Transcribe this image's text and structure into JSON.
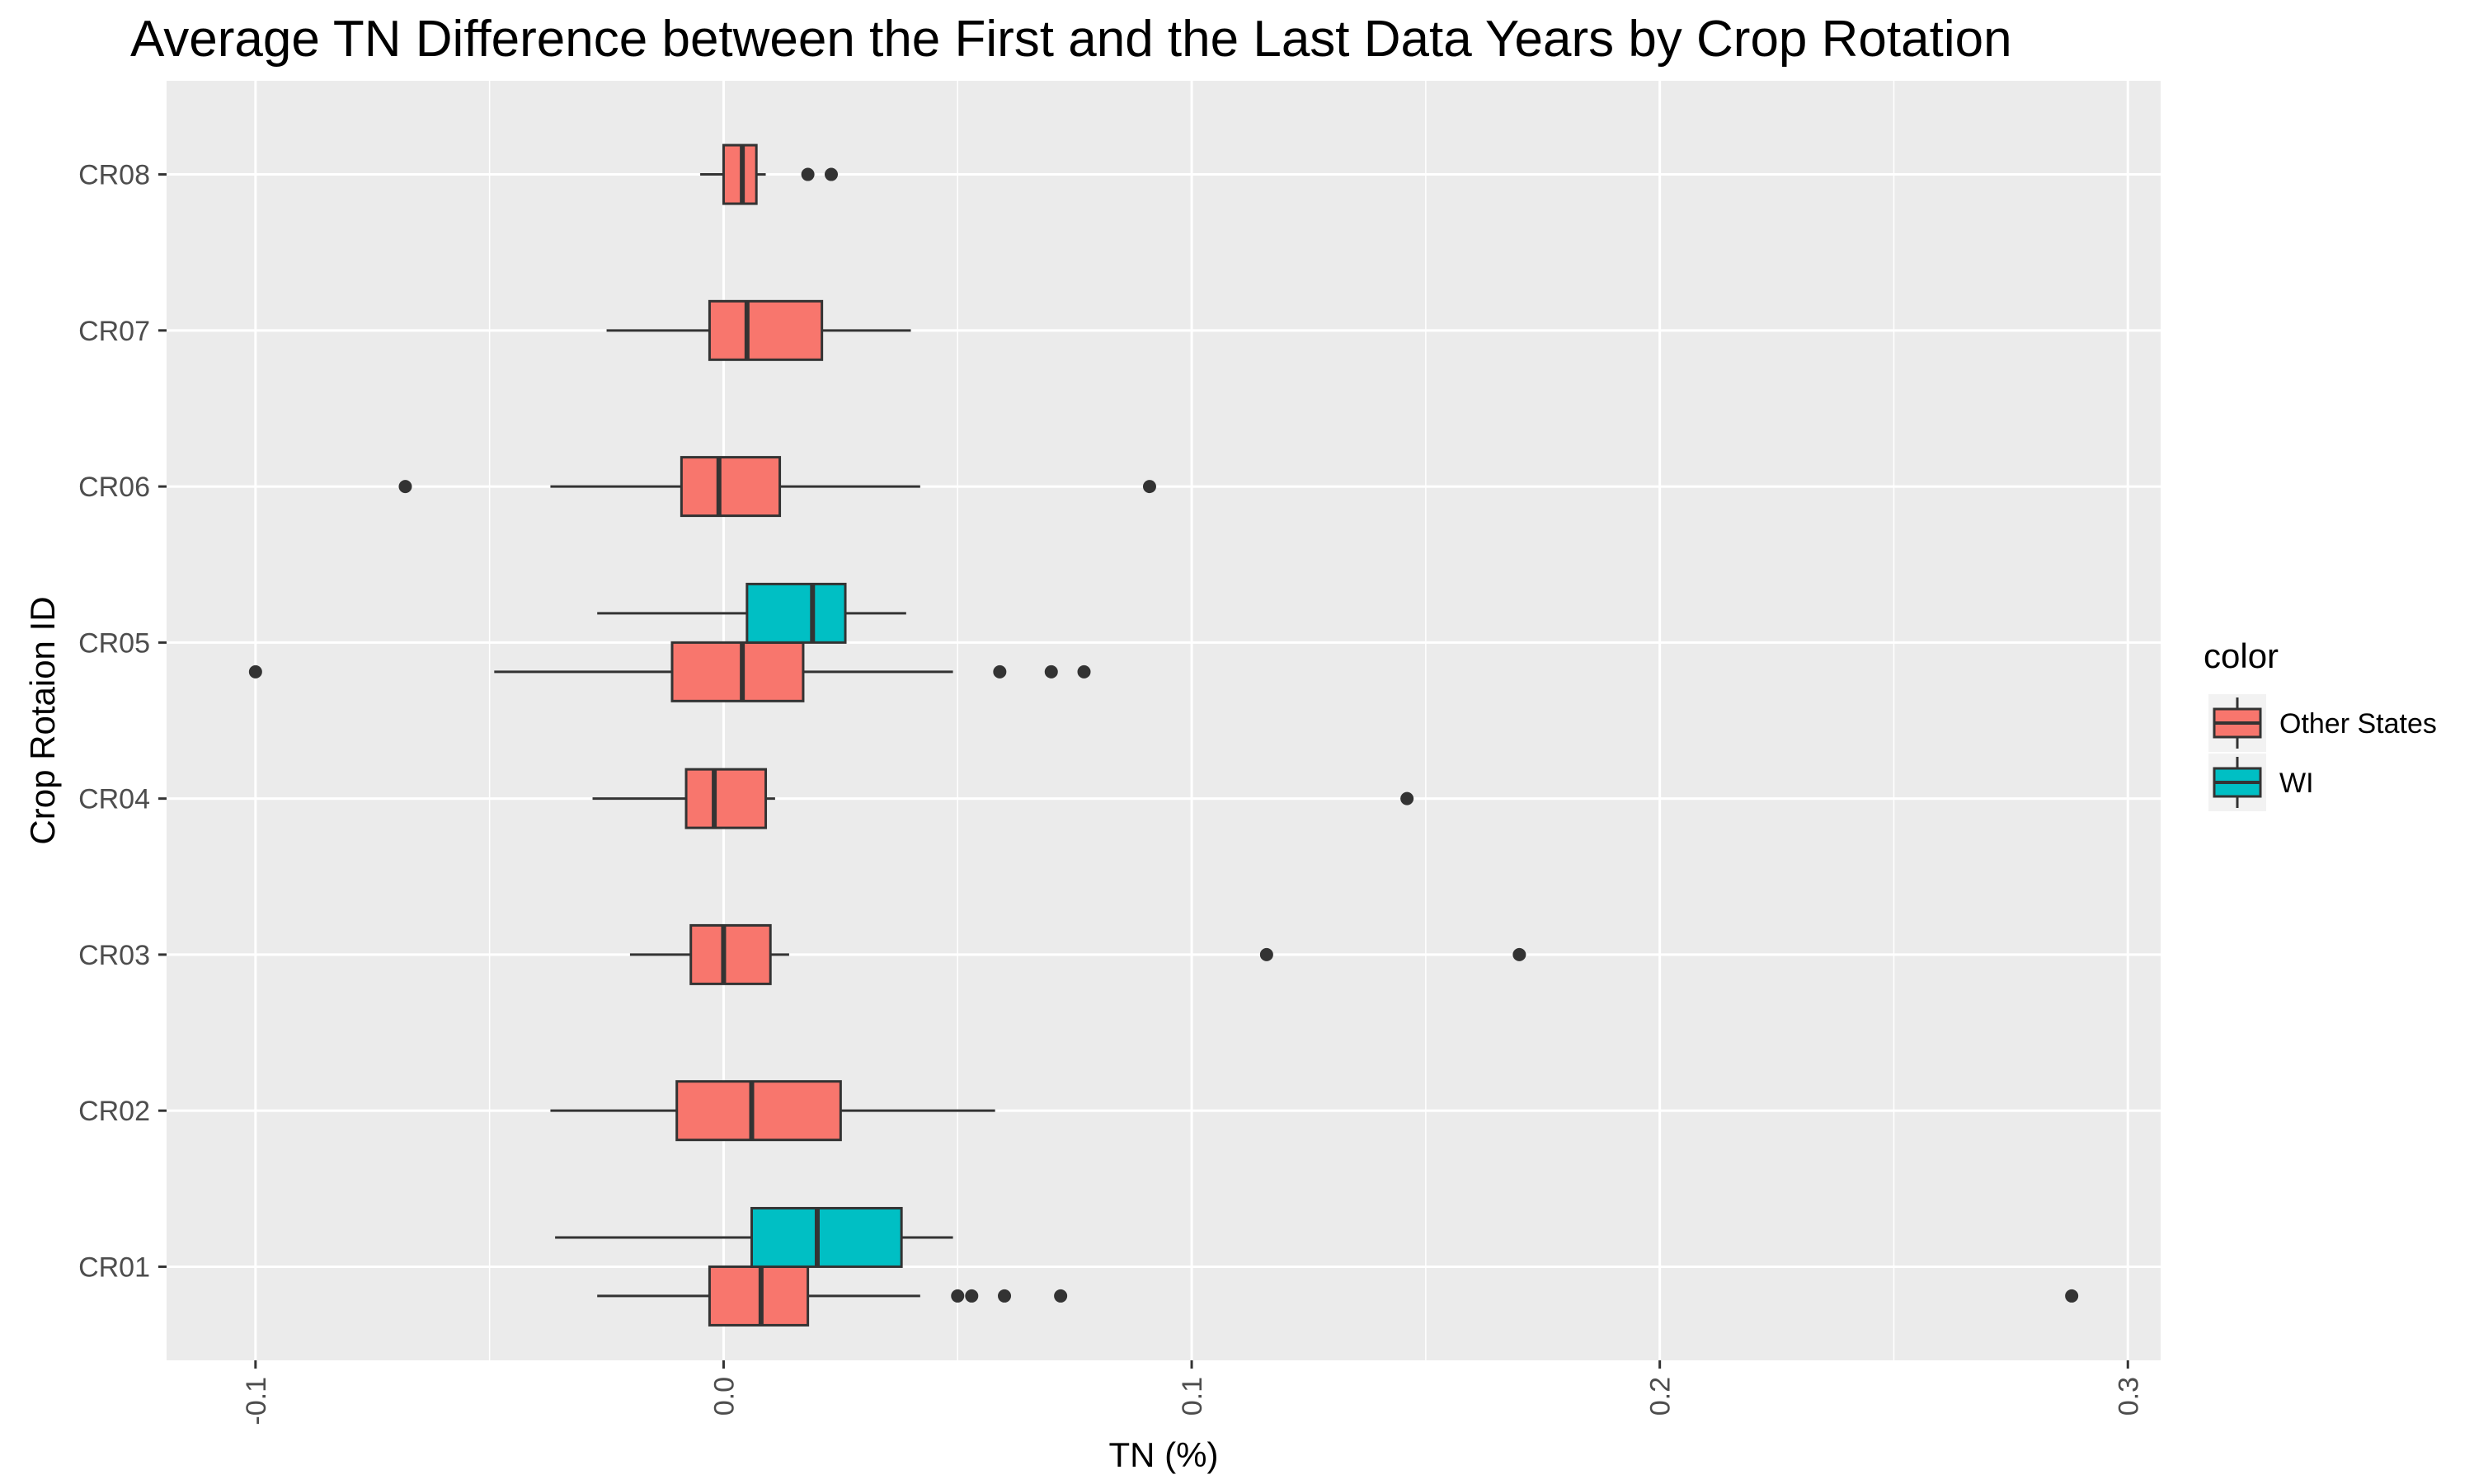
{
  "chart_data": {
    "type": "boxplot",
    "orientation": "horizontal",
    "title": "Average TN Difference between the First and the Last Data Years by Crop Rotation",
    "xlabel": "TN (%)",
    "ylabel": "Crop Rotaion ID",
    "xlim": [
      -0.119,
      0.307
    ],
    "x_ticks": [
      -0.1,
      0.0,
      0.1,
      0.2,
      0.3
    ],
    "x_tick_labels": [
      "-0.1",
      "0.0",
      "0.1",
      "0.2",
      "0.3"
    ],
    "categories": [
      "CR01",
      "CR02",
      "CR03",
      "CR04",
      "CR05",
      "CR06",
      "CR07",
      "CR08"
    ],
    "grid": true,
    "legend": {
      "title": "color",
      "position": "right",
      "entries": [
        {
          "label": "Other States",
          "color": "#F8766D"
        },
        {
          "label": "WI",
          "color": "#00BFC4"
        }
      ]
    },
    "series": [
      {
        "name": "Other States",
        "color": "#F8766D",
        "boxes": [
          {
            "category": "CR01",
            "whisker_low": -0.027,
            "q1": -0.003,
            "median": 0.008,
            "q3": 0.018,
            "whisker_high": 0.042,
            "outliers": [
              0.05,
              0.053,
              0.06,
              0.072,
              0.288
            ]
          },
          {
            "category": "CR02",
            "whisker_low": -0.037,
            "q1": -0.01,
            "median": 0.006,
            "q3": 0.025,
            "whisker_high": 0.058,
            "outliers": []
          },
          {
            "category": "CR03",
            "whisker_low": -0.02,
            "q1": -0.007,
            "median": 0.0,
            "q3": 0.01,
            "whisker_high": 0.014,
            "outliers": [
              0.116,
              0.17
            ]
          },
          {
            "category": "CR04",
            "whisker_low": -0.028,
            "q1": -0.008,
            "median": -0.002,
            "q3": 0.009,
            "whisker_high": 0.011,
            "outliers": [
              0.146
            ]
          },
          {
            "category": "CR05",
            "whisker_low": -0.049,
            "q1": -0.011,
            "median": 0.004,
            "q3": 0.017,
            "whisker_high": 0.049,
            "outliers": [
              -0.1,
              0.059,
              0.07,
              0.077
            ]
          },
          {
            "category": "CR06",
            "whisker_low": -0.037,
            "q1": -0.009,
            "median": -0.001,
            "q3": 0.012,
            "whisker_high": 0.042,
            "outliers": [
              -0.068,
              0.091
            ]
          },
          {
            "category": "CR07",
            "whisker_low": -0.025,
            "q1": -0.003,
            "median": 0.005,
            "q3": 0.021,
            "whisker_high": 0.04,
            "outliers": []
          },
          {
            "category": "CR08",
            "whisker_low": -0.005,
            "q1": 0.0,
            "median": 0.004,
            "q3": 0.007,
            "whisker_high": 0.009,
            "outliers": [
              0.018,
              0.023
            ]
          }
        ]
      },
      {
        "name": "WI",
        "color": "#00BFC4",
        "boxes": [
          {
            "category": "CR01",
            "whisker_low": -0.036,
            "q1": 0.006,
            "median": 0.02,
            "q3": 0.038,
            "whisker_high": 0.049,
            "outliers": []
          },
          {
            "category": "CR05",
            "whisker_low": -0.027,
            "q1": 0.005,
            "median": 0.019,
            "q3": 0.026,
            "whisker_high": 0.039,
            "outliers": []
          }
        ]
      }
    ]
  }
}
